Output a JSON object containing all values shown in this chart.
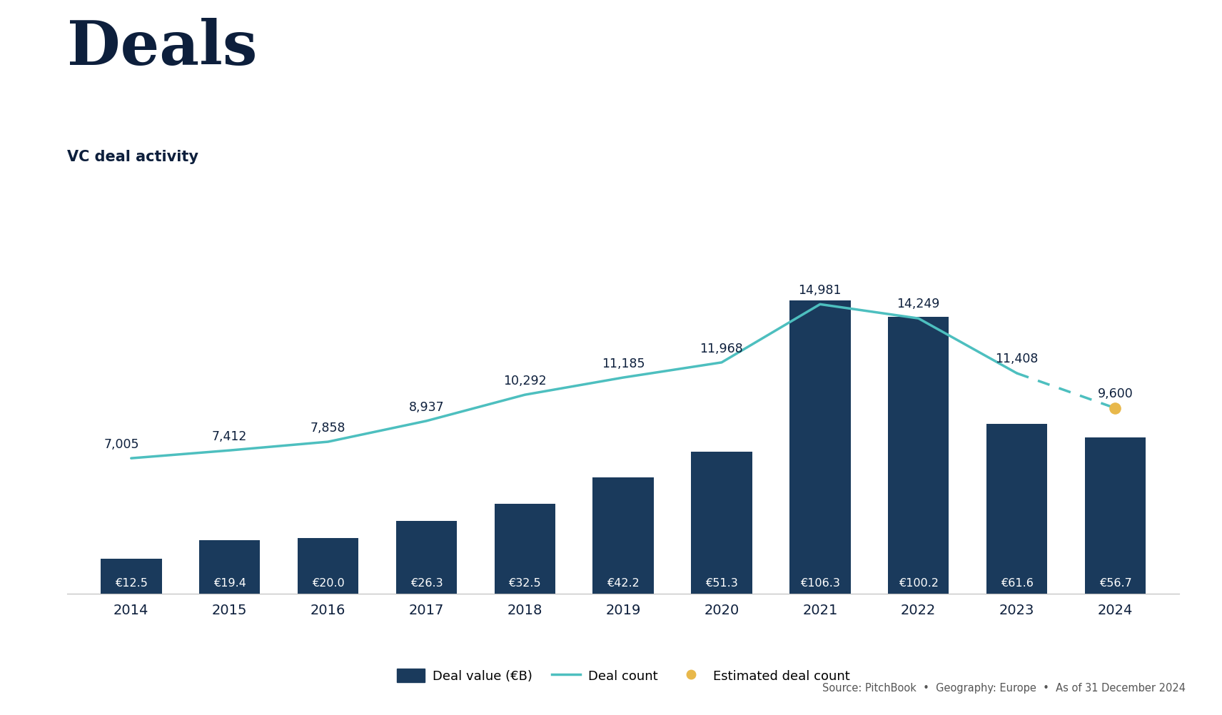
{
  "title": "Deals",
  "subtitle": "VC deal activity",
  "years": [
    2014,
    2015,
    2016,
    2017,
    2018,
    2019,
    2020,
    2021,
    2022,
    2023,
    2024
  ],
  "deal_values": [
    12.5,
    19.4,
    20.0,
    26.3,
    32.5,
    42.2,
    51.3,
    106.3,
    100.2,
    61.6,
    56.7
  ],
  "deal_value_labels": [
    "€12.5",
    "€19.4",
    "€20.0",
    "€26.3",
    "€32.5",
    "€42.2",
    "€51.3",
    "€106.3",
    "€100.2",
    "€61.6",
    "€56.7"
  ],
  "deal_counts": [
    7005,
    7412,
    7858,
    8937,
    10292,
    11185,
    11968,
    14981,
    14249,
    11408,
    9600
  ],
  "deal_count_labels": [
    "7,005",
    "7,412",
    "7,858",
    "8,937",
    "10,292",
    "11,185",
    "11,968",
    "14,981",
    "14,249",
    "11,408",
    "9,600"
  ],
  "estimated_last": true,
  "bar_color": "#1a3a5c",
  "line_color": "#4dbfbf",
  "estimated_dot_color": "#e8b84b",
  "background_color": "#ffffff",
  "title_color": "#0d1f3c",
  "subtitle_color": "#0d1f3c",
  "label_color": "#0d1f3c",
  "label_color_dark": "#333333",
  "source_text": "Source: PitchBook  •  Geography: Europe  •  As of 31 December 2024",
  "legend_items": [
    "Deal value (€B)",
    "Deal count",
    "Estimated deal count"
  ],
  "bar_width": 0.62,
  "ylim_left": [
    0,
    140
  ],
  "ylim_right": [
    0,
    20000
  ]
}
